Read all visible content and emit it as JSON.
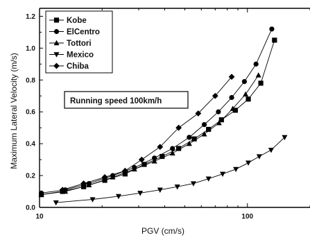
{
  "chart_data": {
    "type": "line",
    "xlabel": "PGV (cm/s)",
    "ylabel": "Maximum Lateral Velocity (m/s)",
    "x_scale": "log",
    "xlim": [
      10,
      200
    ],
    "ylim": [
      0,
      1.25
    ],
    "x_ticks": [
      10,
      100
    ],
    "x_tick_labels": [
      "10",
      "100"
    ],
    "y_ticks": [
      0.0,
      0.2,
      0.4,
      0.6,
      0.8,
      1.0,
      1.2
    ],
    "y_tick_labels": [
      "0.0",
      "0.2",
      "0.4",
      "0.6",
      "0.8",
      "1.0",
      "1.2"
    ],
    "legend_position": "top-left",
    "annotation": "Running speed 100km/h",
    "series": [
      {
        "name": "Kobe",
        "marker": "square",
        "points": [
          [
            10.2,
            0.08
          ],
          [
            12.9,
            0.1
          ],
          [
            16.3,
            0.13
          ],
          [
            20.6,
            0.17
          ],
          [
            25.8,
            0.21
          ],
          [
            31.9,
            0.27
          ],
          [
            38.9,
            0.32
          ],
          [
            46.7,
            0.37
          ],
          [
            55.5,
            0.43
          ],
          [
            65.0,
            0.49
          ],
          [
            75.0,
            0.55
          ],
          [
            87.5,
            0.61
          ],
          [
            101,
            0.68
          ],
          [
            116,
            0.78
          ],
          [
            135,
            1.05
          ]
        ]
      },
      {
        "name": "ElCentro",
        "marker": "circle",
        "points": [
          [
            10.2,
            0.09
          ],
          [
            13.3,
            0.11
          ],
          [
            17.3,
            0.15
          ],
          [
            22.5,
            0.2
          ],
          [
            28.6,
            0.25
          ],
          [
            35.7,
            0.31
          ],
          [
            43.6,
            0.37
          ],
          [
            52.5,
            0.44
          ],
          [
            62.0,
            0.52
          ],
          [
            72.5,
            0.6
          ],
          [
            84.0,
            0.69
          ],
          [
            96.7,
            0.79
          ],
          [
            110,
            0.9
          ],
          [
            131,
            1.12
          ]
        ]
      },
      {
        "name": "Tottori",
        "marker": "triangle-up",
        "points": [
          [
            10.2,
            0.08
          ],
          [
            13.3,
            0.1
          ],
          [
            17.3,
            0.14
          ],
          [
            22.5,
            0.19
          ],
          [
            28.6,
            0.24
          ],
          [
            35.7,
            0.29
          ],
          [
            43.6,
            0.34
          ],
          [
            52.5,
            0.4
          ],
          [
            62.0,
            0.46
          ],
          [
            73.0,
            0.53
          ],
          [
            85.0,
            0.62
          ],
          [
            98.0,
            0.71
          ],
          [
            113,
            0.83
          ]
        ]
      },
      {
        "name": "Mexico",
        "marker": "triangle-down",
        "points": [
          [
            12.0,
            0.03
          ],
          [
            18.0,
            0.05
          ],
          [
            24.0,
            0.07
          ],
          [
            30.5,
            0.09
          ],
          [
            38.0,
            0.11
          ],
          [
            46.0,
            0.13
          ],
          [
            55.0,
            0.15
          ],
          [
            65.0,
            0.18
          ],
          [
            76.0,
            0.21
          ],
          [
            88.0,
            0.24
          ],
          [
            101,
            0.28
          ],
          [
            114,
            0.32
          ],
          [
            130,
            0.36
          ],
          [
            151,
            0.44
          ]
        ]
      },
      {
        "name": "Chiba",
        "marker": "diamond",
        "points": [
          [
            12.9,
            0.11
          ],
          [
            16.3,
            0.15
          ],
          [
            20.6,
            0.19
          ],
          [
            25.8,
            0.23
          ],
          [
            31.0,
            0.3
          ],
          [
            38.0,
            0.38
          ],
          [
            46.7,
            0.5
          ],
          [
            58.0,
            0.59
          ],
          [
            70.0,
            0.7
          ],
          [
            84.0,
            0.82
          ]
        ]
      }
    ]
  }
}
